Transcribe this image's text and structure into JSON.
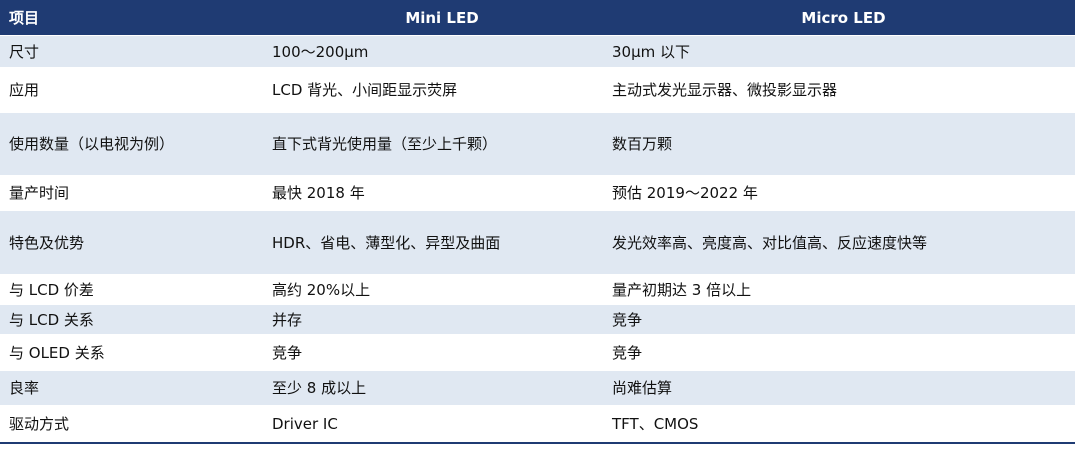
{
  "table": {
    "headers": [
      "项目",
      "Mini LED",
      "Micro LED"
    ],
    "rows": [
      [
        "尺寸",
        "100～200μm",
        "30μm 以下"
      ],
      [
        "应用",
        "LCD 背光、小间距显示荧屏",
        "主动式发光显示器、微投影显示器"
      ],
      [
        "使用数量（以电视为例）",
        "直下式背光使用量（至少上千颗）",
        "数百万颗"
      ],
      [
        "量产时间",
        "最快 2018 年",
        "预估 2019～2022 年"
      ],
      [
        "特色及优势",
        "HDR、省电、薄型化、异型及曲面",
        "发光效率高、亮度高、对比值高、反应速度快等"
      ],
      [
        "与 LCD 价差",
        "高约 20%以上",
        "量产初期达 3 倍以上"
      ],
      [
        "与 LCD 关系",
        "并存",
        "竞争"
      ],
      [
        "与 OLED 关系",
        "竞争",
        "竞争"
      ],
      [
        "良率",
        "至少 8 成以上",
        "尚难估算"
      ],
      [
        "驱动方式",
        "Driver IC",
        "TFT、CMOS"
      ]
    ]
  },
  "colors": {
    "header_bg": "#1f3b73",
    "header_text": "#ffffff",
    "stripe_bg": "#e0e8f2",
    "row_bg": "#ffffff"
  }
}
